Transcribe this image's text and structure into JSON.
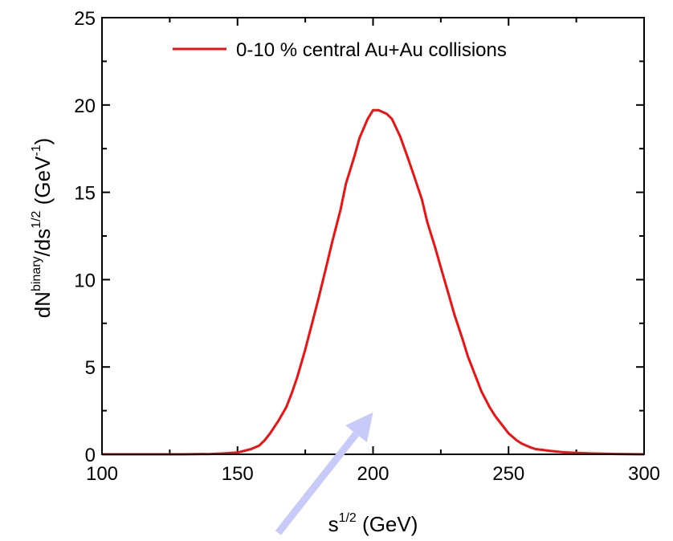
{
  "chart_data": {
    "type": "line",
    "title": "",
    "xlabel": {
      "base": "s",
      "sup": "1/2",
      "rest": " (GeV)"
    },
    "ylabel": {
      "p1": "dN",
      "sup1": "binary",
      "p2": "/ds",
      "sup2": "1/2",
      "p3": " (GeV",
      "sup3": "-1",
      "p4": ")"
    },
    "xlim": [
      100,
      300
    ],
    "ylim": [
      0,
      25
    ],
    "xticks": [
      100,
      150,
      200,
      250,
      300
    ],
    "yticks": [
      0,
      5,
      10,
      15,
      20,
      25
    ],
    "grid": false,
    "legend": "top-right",
    "series": [
      {
        "name": "0-10 % central Au+Au collisions",
        "color": "#ee1111",
        "x": [
          100,
          110,
          120,
          130,
          140,
          145,
          150,
          155,
          158,
          160,
          162,
          165,
          168,
          170,
          172,
          175,
          178,
          180,
          183,
          185,
          188,
          190,
          193,
          195,
          198,
          200,
          202,
          205,
          207,
          210,
          213,
          215,
          218,
          220,
          223,
          225,
          228,
          230,
          233,
          235,
          238,
          240,
          243,
          245,
          248,
          250,
          253,
          255,
          258,
          260,
          265,
          270,
          275,
          280,
          290,
          300
        ],
        "y": [
          0,
          0,
          0,
          0,
          0.02,
          0.05,
          0.1,
          0.3,
          0.5,
          0.8,
          1.2,
          1.9,
          2.7,
          3.5,
          4.4,
          6.0,
          7.8,
          9.0,
          10.9,
          12.2,
          14.0,
          15.5,
          17.0,
          18.1,
          19.2,
          19.7,
          19.7,
          19.5,
          19.2,
          18.2,
          16.9,
          16.0,
          14.6,
          13.3,
          11.8,
          10.7,
          9.1,
          8.0,
          6.6,
          5.6,
          4.4,
          3.6,
          2.7,
          2.2,
          1.6,
          1.2,
          0.8,
          0.6,
          0.4,
          0.3,
          0.2,
          0.12,
          0.08,
          0.05,
          0.02,
          0
        ]
      }
    ],
    "annotation_arrow": {
      "from": [
        165,
        -4.5
      ],
      "to": [
        200,
        2.4
      ],
      "color": "#c8cafa"
    }
  }
}
